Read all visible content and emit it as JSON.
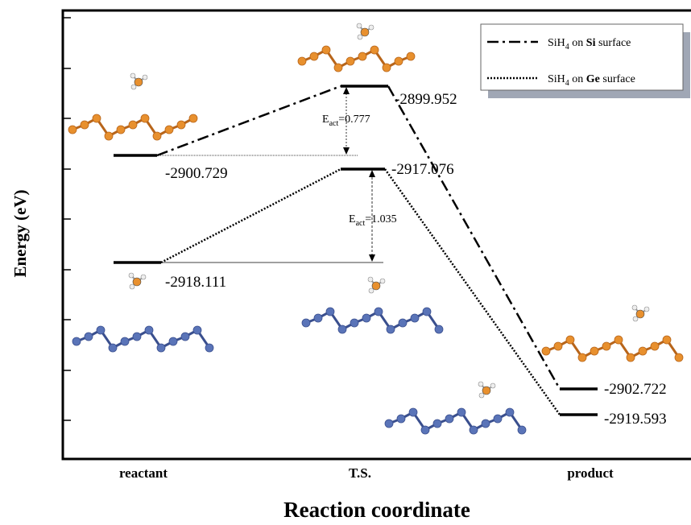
{
  "y_axis_label": "Energy (eV)",
  "x_axis_label": "Reaction coordinate",
  "stages": [
    "reactant",
    "T.S.",
    "product"
  ],
  "legend": [
    {
      "formula": "SiH",
      "subscript": "4",
      "middle": " on ",
      "surface": "Si",
      "suffix": " surface"
    },
    {
      "formula": "SiH",
      "subscript": "4",
      "middle": " on ",
      "surface": "Ge",
      "suffix": " surface"
    }
  ],
  "levels": {
    "si": [
      "-2900.729",
      "-2899.952",
      "-2902.722"
    ],
    "ge": [
      "-2918.111",
      "-2917.076",
      "-2919.593"
    ]
  },
  "barriers": [
    {
      "symbol": "E",
      "subscript": "act",
      "value": "=0.777"
    },
    {
      "symbol": "E",
      "subscript": "act",
      "value": "=1.035"
    }
  ]
}
